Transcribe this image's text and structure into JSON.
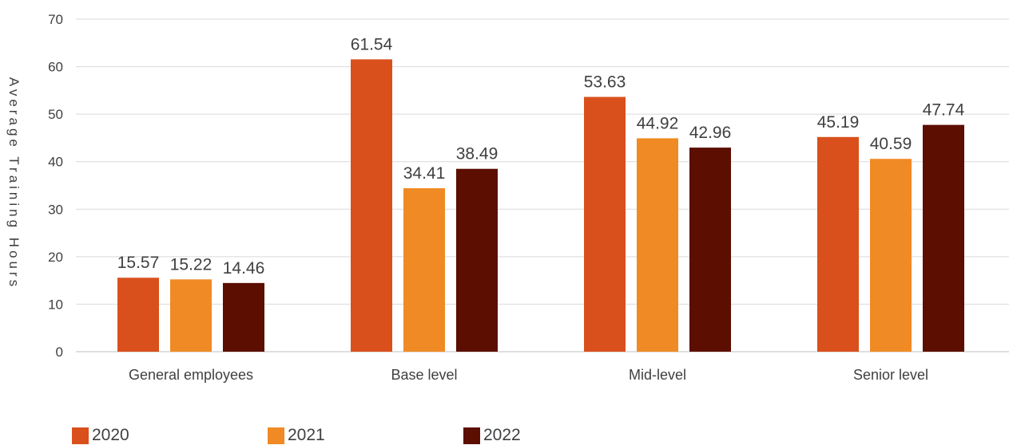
{
  "chart_data": {
    "type": "bar",
    "ylabel": "Average Training Hours",
    "xlabel": "",
    "ylim": [
      0,
      70
    ],
    "yticks": [
      "0",
      "10",
      "20",
      "30",
      "40",
      "50",
      "60",
      "70"
    ],
    "categories": [
      "General employees",
      "Base level",
      "Mid-level",
      "Senior level"
    ],
    "series": [
      {
        "name": "2020",
        "color": "#D9501D",
        "values": [
          15.57,
          61.54,
          53.63,
          45.19
        ]
      },
      {
        "name": "2021",
        "color": "#F08A24",
        "values": [
          15.22,
          34.41,
          44.92,
          40.59
        ]
      },
      {
        "name": "2022",
        "color": "#5C0E00",
        "values": [
          14.46,
          38.49,
          42.96,
          47.74
        ]
      }
    ],
    "grid": true,
    "legend_position": "bottom-left"
  }
}
